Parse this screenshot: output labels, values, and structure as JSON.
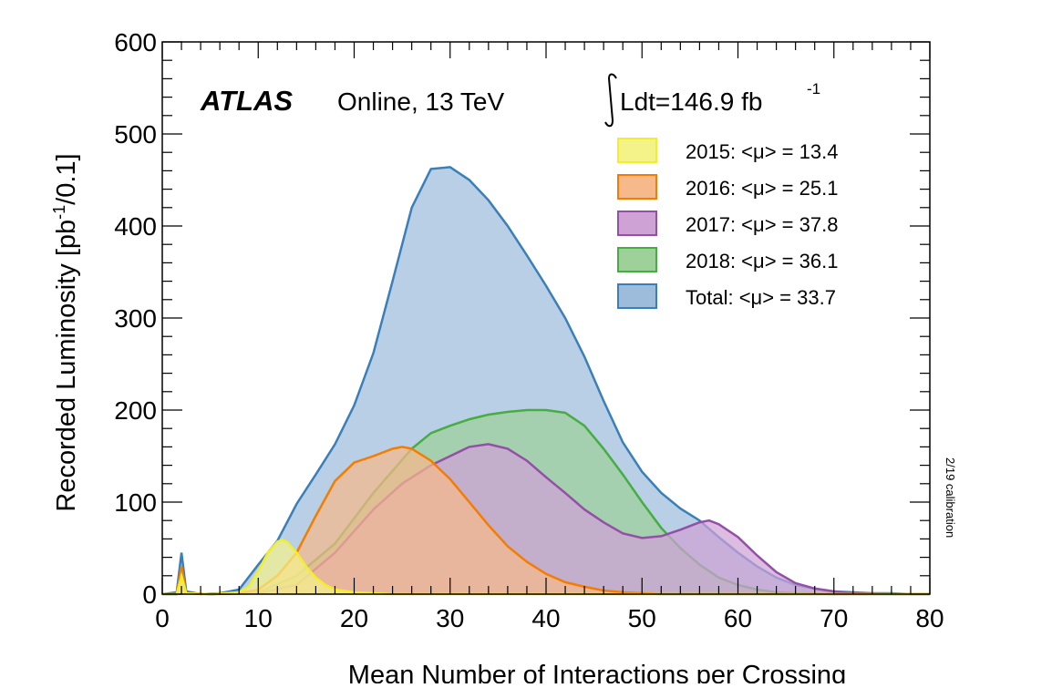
{
  "chart_data": {
    "type": "area",
    "xlabel": "Mean Number of Interactions per Crossing",
    "ylabel": "Recorded Luminosity [pb",
    "ylabel_sup": "-1",
    "ylabel_tail": "/0.1]",
    "xlim": [
      0,
      80
    ],
    "ylim": [
      0,
      600
    ],
    "x_ticks": [
      "0",
      "10",
      "20",
      "30",
      "40",
      "50",
      "60",
      "70",
      "80"
    ],
    "y_ticks": [
      "0",
      "100",
      "200",
      "300",
      "400",
      "500",
      "600"
    ],
    "grid": false,
    "legend_position": "top-right",
    "experiment": "ATLAS",
    "subtitle": "Online, 13 TeV",
    "lumi_text": "Ldt=146.9 fb",
    "lumi_sup": "-1",
    "side_note": "2/19 calibration",
    "series": [
      {
        "name": "Total: <μ> = 33.7",
        "fill": "#9dbcdb",
        "stroke": "#3b7fb9",
        "points": [
          [
            0,
            0
          ],
          [
            1.5,
            2
          ],
          [
            2,
            45
          ],
          [
            2.5,
            3
          ],
          [
            4,
            0
          ],
          [
            6,
            1
          ],
          [
            8,
            5
          ],
          [
            10,
            32
          ],
          [
            12,
            58
          ],
          [
            14,
            98
          ],
          [
            16,
            130
          ],
          [
            18,
            163
          ],
          [
            20,
            205
          ],
          [
            22,
            262
          ],
          [
            24,
            340
          ],
          [
            26,
            420
          ],
          [
            28,
            462
          ],
          [
            30,
            464
          ],
          [
            32,
            450
          ],
          [
            34,
            428
          ],
          [
            36,
            400
          ],
          [
            38,
            368
          ],
          [
            40,
            335
          ],
          [
            42,
            300
          ],
          [
            44,
            258
          ],
          [
            46,
            210
          ],
          [
            48,
            165
          ],
          [
            50,
            133
          ],
          [
            52,
            110
          ],
          [
            54,
            93
          ],
          [
            56,
            80
          ],
          [
            58,
            62
          ],
          [
            60,
            45
          ],
          [
            62,
            30
          ],
          [
            64,
            18
          ],
          [
            66,
            10
          ],
          [
            68,
            6
          ],
          [
            70,
            3
          ],
          [
            72,
            2
          ],
          [
            74,
            1
          ],
          [
            76,
            1
          ],
          [
            78,
            0
          ],
          [
            80,
            0
          ]
        ]
      },
      {
        "name": "2018: <μ> = 36.1",
        "fill": "#9ed09a",
        "stroke": "#46ad41",
        "points": [
          [
            0,
            0
          ],
          [
            1.5,
            0
          ],
          [
            2,
            15
          ],
          [
            2.5,
            1
          ],
          [
            5,
            0
          ],
          [
            10,
            2
          ],
          [
            14,
            20
          ],
          [
            18,
            55
          ],
          [
            22,
            110
          ],
          [
            26,
            158
          ],
          [
            28,
            175
          ],
          [
            30,
            183
          ],
          [
            32,
            190
          ],
          [
            34,
            195
          ],
          [
            36,
            198
          ],
          [
            38,
            200
          ],
          [
            40,
            200
          ],
          [
            42,
            197
          ],
          [
            44,
            183
          ],
          [
            46,
            158
          ],
          [
            48,
            130
          ],
          [
            50,
            100
          ],
          [
            52,
            72
          ],
          [
            54,
            50
          ],
          [
            56,
            32
          ],
          [
            58,
            18
          ],
          [
            60,
            10
          ],
          [
            62,
            5
          ],
          [
            64,
            2
          ],
          [
            66,
            1
          ],
          [
            70,
            0
          ],
          [
            80,
            0
          ]
        ]
      },
      {
        "name": "2017: <μ> = 37.8",
        "fill": "#cfa2d5",
        "stroke": "#944fa6",
        "points": [
          [
            0,
            0
          ],
          [
            1.5,
            0
          ],
          [
            2,
            25
          ],
          [
            2.5,
            1
          ],
          [
            5,
            0
          ],
          [
            10,
            1
          ],
          [
            14,
            10
          ],
          [
            18,
            45
          ],
          [
            22,
            92
          ],
          [
            25,
            120
          ],
          [
            28,
            140
          ],
          [
            30,
            150
          ],
          [
            32,
            160
          ],
          [
            34,
            163
          ],
          [
            36,
            158
          ],
          [
            38,
            145
          ],
          [
            40,
            127
          ],
          [
            42,
            110
          ],
          [
            44,
            92
          ],
          [
            46,
            78
          ],
          [
            48,
            66
          ],
          [
            50,
            61
          ],
          [
            52,
            63
          ],
          [
            54,
            70
          ],
          [
            56,
            78
          ],
          [
            57,
            80
          ],
          [
            58,
            76
          ],
          [
            60,
            62
          ],
          [
            62,
            42
          ],
          [
            64,
            24
          ],
          [
            66,
            12
          ],
          [
            68,
            6
          ],
          [
            70,
            3
          ],
          [
            72,
            1
          ],
          [
            76,
            0
          ],
          [
            80,
            0
          ]
        ]
      },
      {
        "name": "2016: <μ> = 25.1",
        "fill": "#f6b98b",
        "stroke": "#f47c00",
        "points": [
          [
            0,
            0
          ],
          [
            1.5,
            0
          ],
          [
            2,
            30
          ],
          [
            2.5,
            1
          ],
          [
            5,
            0
          ],
          [
            8,
            1
          ],
          [
            10,
            5
          ],
          [
            12,
            20
          ],
          [
            14,
            45
          ],
          [
            16,
            85
          ],
          [
            18,
            123
          ],
          [
            20,
            143
          ],
          [
            22,
            150
          ],
          [
            24,
            158
          ],
          [
            25,
            160
          ],
          [
            26,
            158
          ],
          [
            28,
            145
          ],
          [
            30,
            125
          ],
          [
            32,
            100
          ],
          [
            34,
            75
          ],
          [
            36,
            52
          ],
          [
            38,
            35
          ],
          [
            40,
            22
          ],
          [
            42,
            13
          ],
          [
            44,
            8
          ],
          [
            46,
            4
          ],
          [
            48,
            2
          ],
          [
            50,
            1
          ],
          [
            52,
            0
          ],
          [
            80,
            0
          ]
        ]
      },
      {
        "name": "2015: <μ> = 13.4",
        "fill": "#f4f38a",
        "stroke": "#f2ee2a",
        "points": [
          [
            0,
            0
          ],
          [
            1.5,
            0
          ],
          [
            2,
            20
          ],
          [
            2.5,
            1
          ],
          [
            5,
            0
          ],
          [
            8,
            2
          ],
          [
            9,
            8
          ],
          [
            10,
            25
          ],
          [
            11,
            45
          ],
          [
            12,
            57
          ],
          [
            12.5,
            59
          ],
          [
            13,
            57
          ],
          [
            14,
            45
          ],
          [
            15,
            30
          ],
          [
            16,
            18
          ],
          [
            17,
            10
          ],
          [
            18,
            5
          ],
          [
            20,
            2
          ],
          [
            22,
            1
          ],
          [
            24,
            0
          ],
          [
            80,
            0
          ]
        ]
      }
    ]
  }
}
